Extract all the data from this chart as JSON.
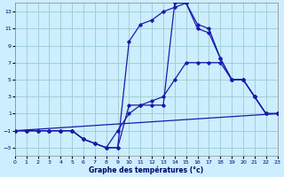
{
  "xlabel": "Graphe des températures (°c)",
  "xlim": [
    0,
    23
  ],
  "ylim": [
    -4,
    14
  ],
  "yticks": [
    -3,
    -1,
    1,
    3,
    5,
    7,
    9,
    11,
    13
  ],
  "xticks": [
    0,
    1,
    2,
    3,
    4,
    5,
    6,
    7,
    8,
    9,
    10,
    11,
    12,
    13,
    14,
    15,
    16,
    17,
    18,
    19,
    20,
    21,
    22,
    23
  ],
  "bg_color": "#cceeff",
  "line_color": "#1a1aaa",
  "grid_color": "#99cccc",
  "lines": [
    {
      "x": [
        0,
        1,
        2,
        3,
        4,
        5,
        6,
        7,
        8,
        9,
        10,
        11,
        12,
        13,
        14,
        15,
        16,
        17,
        18,
        19,
        20,
        21,
        22,
        23
      ],
      "y": [
        -1,
        -1,
        -1,
        -1,
        -1,
        -1,
        -2,
        -2.5,
        -3,
        -3,
        9.5,
        11.5,
        12,
        13,
        13.5,
        14,
        11.5,
        11,
        7.5,
        5,
        5,
        3,
        1,
        1
      ]
    },
    {
      "x": [
        0,
        1,
        2,
        3,
        4,
        5,
        6,
        7,
        8,
        9,
        10,
        11,
        12,
        13,
        14,
        15,
        16,
        17,
        18,
        19,
        20,
        21,
        22,
        23
      ],
      "y": [
        -1,
        -1,
        -1,
        -1,
        -1,
        -1,
        -2,
        -2.5,
        -3,
        -3,
        2,
        2,
        2,
        2,
        14,
        14,
        11,
        10.5,
        7.5,
        5,
        5,
        3,
        1,
        1
      ]
    },
    {
      "x": [
        0,
        1,
        2,
        3,
        4,
        5,
        6,
        7,
        8,
        9,
        10,
        11,
        12,
        13,
        14,
        15,
        16,
        17,
        18,
        19,
        20,
        21,
        22,
        23
      ],
      "y": [
        -1,
        -1,
        -1,
        -1,
        -1,
        -1,
        -2,
        -2.5,
        -3,
        -1,
        1,
        2,
        2.5,
        3,
        5,
        7,
        7,
        7,
        7,
        5,
        5,
        3,
        1,
        1
      ]
    },
    {
      "x": [
        0,
        23
      ],
      "y": [
        -1,
        1
      ]
    }
  ]
}
